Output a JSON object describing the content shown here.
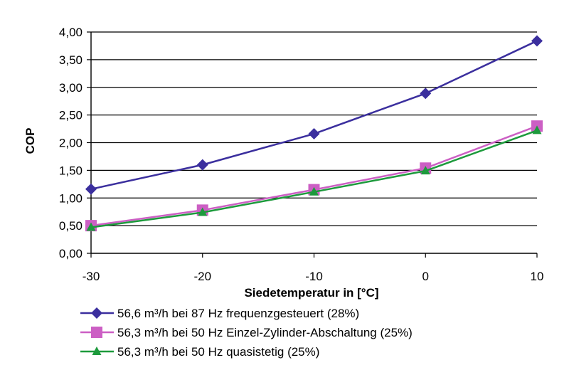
{
  "chart_data": {
    "type": "line",
    "xlabel": "Siedetemperatur in [°C]",
    "ylabel": "COP",
    "x": [
      -30,
      -20,
      -10,
      0,
      10
    ],
    "xlim": [
      -30,
      10
    ],
    "ylim": [
      0,
      4
    ],
    "x_ticks": [
      "-30",
      "-20",
      "-10",
      "0",
      "10"
    ],
    "y_ticks": [
      "0,00",
      "0,50",
      "1,00",
      "1,50",
      "2,00",
      "2,50",
      "3,00",
      "3,50",
      "4,00"
    ],
    "grid": "horizontal",
    "legend_position": "bottom",
    "series": [
      {
        "name": "56,6 m³/h bei 87 Hz frequenzgesteuert (28%)",
        "values": [
          1.16,
          1.6,
          2.16,
          2.89,
          3.84
        ],
        "color": "#3b2f9e",
        "marker": "diamond"
      },
      {
        "name": "56,3 m³/h bei 50 Hz Einzel-Zylinder-Abschaltung (25%)",
        "values": [
          0.5,
          0.78,
          1.15,
          1.54,
          2.3
        ],
        "color": "#cc5fc4",
        "marker": "square"
      },
      {
        "name": "56,3 m³/h bei 50 Hz quasistetig (25%)",
        "values": [
          0.47,
          0.74,
          1.11,
          1.49,
          2.22
        ],
        "color": "#1d9a3c",
        "marker": "triangle"
      }
    ]
  }
}
